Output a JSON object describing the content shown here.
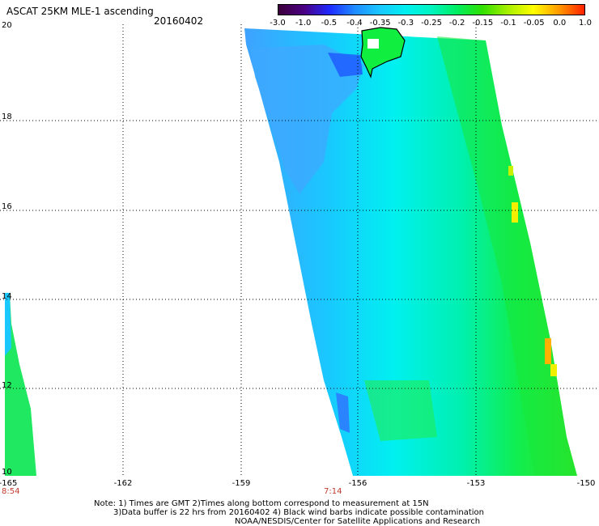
{
  "header": {
    "title": "ASCAT 25KM MLE-1 ascending",
    "date": "20160402"
  },
  "colorbar": {
    "tick_labels": [
      "-3.0",
      "-1.0",
      "-0.5",
      "-0.4",
      "-0.35",
      "-0.3",
      "-0.25",
      "-0.2",
      "-0.15",
      "-0.1",
      "-0.05",
      "0.0",
      "1.0"
    ],
    "colors": [
      "#3a003a",
      "#4b0082",
      "#1f2aff",
      "#1f8cff",
      "#19c8ff",
      "#00f0f0",
      "#00f5c0",
      "#00ee60",
      "#30e000",
      "#a8f000",
      "#ffff00",
      "#ff9a00",
      "#ff2000"
    ]
  },
  "axes": {
    "lat_labels": [
      "20",
      "18",
      "16",
      "14",
      "12",
      "10"
    ],
    "lon_labels": [
      "-165",
      "-162",
      "-159",
      "-156",
      "-153",
      "-150"
    ]
  },
  "times": [
    "8:54",
    "7:14"
  ],
  "notes": [
    "Note: 1) Times are GMT 2)Times along bottom correspond to measurement at 15N",
    "3)Data buffer is 22 hrs from 20160402 4) Black wind barbs indicate possible contamination",
    "NOAA/NESDIS/Center for Satellite Applications and Research"
  ]
}
